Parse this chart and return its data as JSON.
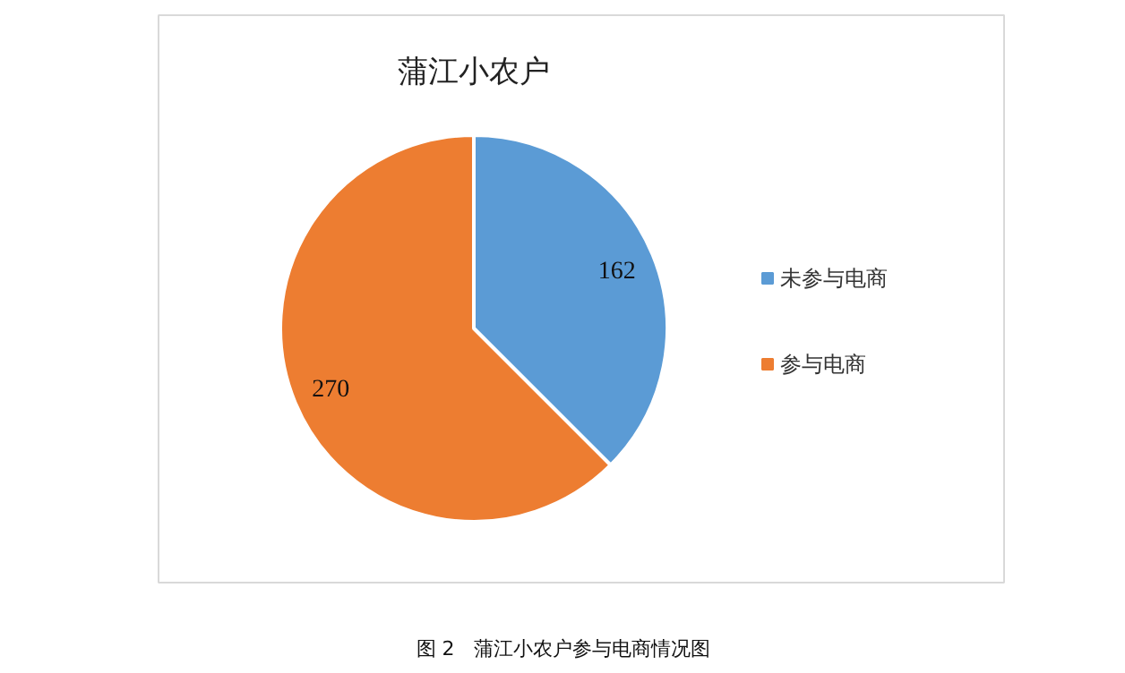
{
  "chart_data": {
    "type": "pie",
    "title": "蒲江小农户",
    "categories": [
      "未参与电商",
      "参与电商"
    ],
    "values": [
      162,
      270
    ],
    "colors": [
      "#5b9bd5",
      "#ed7d31"
    ],
    "data_labels": true,
    "legend": "right",
    "annotations": [
      "图 2　蒲江小农户参与电商情况图"
    ]
  }
}
